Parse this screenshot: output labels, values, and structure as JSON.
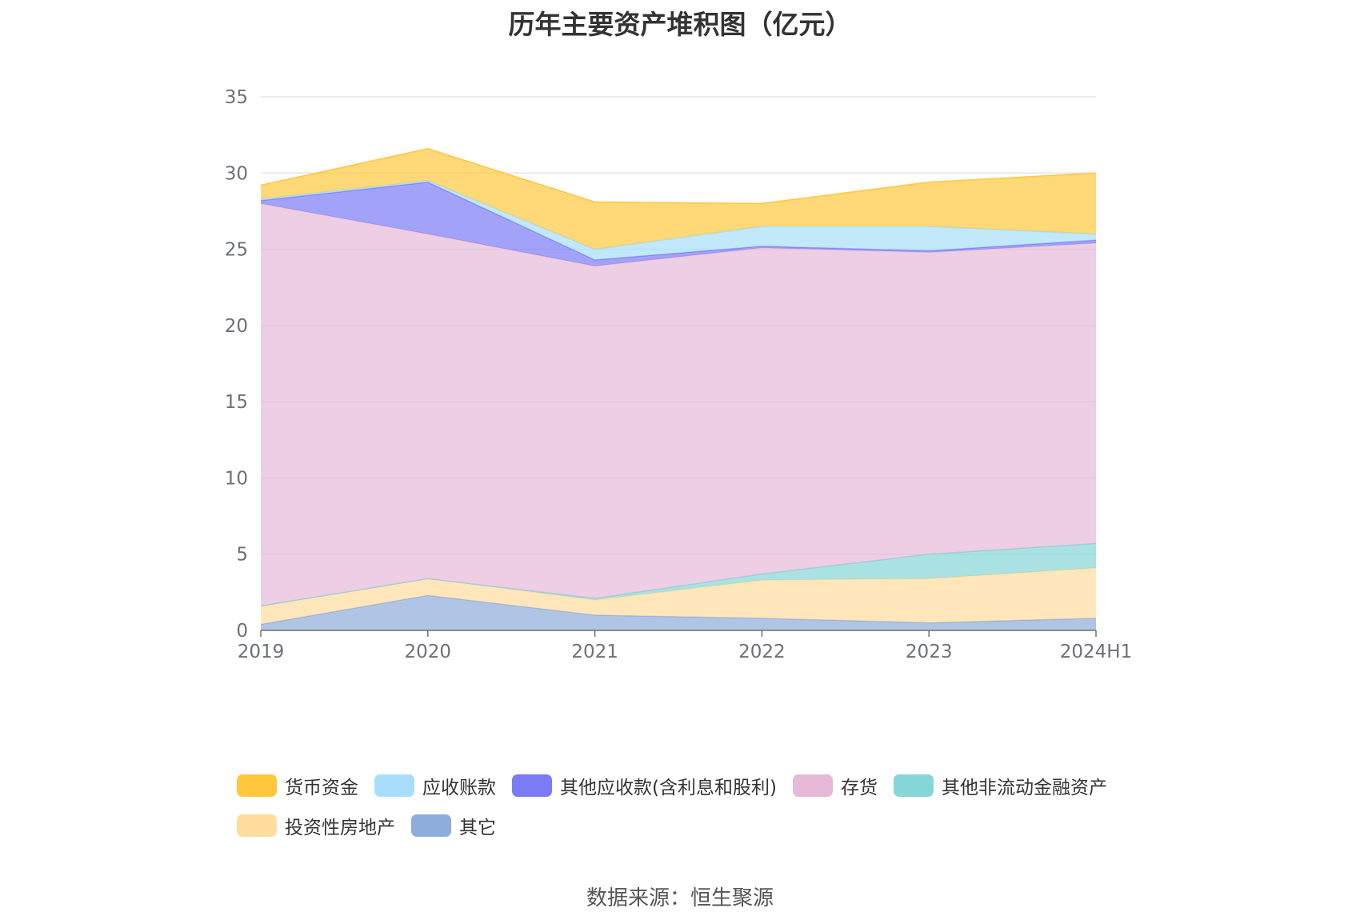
{
  "chart_data": {
    "type": "area",
    "title": "历年主要资产堆积图（亿元）",
    "x": [
      "2019",
      "2020",
      "2021",
      "2022",
      "2023",
      "2024H1"
    ],
    "ylim": [
      0,
      35
    ],
    "yticks": [
      0,
      5,
      10,
      15,
      20,
      25,
      30,
      35
    ],
    "grid": true,
    "stacked": true,
    "legend_position": "bottom",
    "series": [
      {
        "name": "其它",
        "color": "#8eacdc",
        "values": [
          0.4,
          2.3,
          1.0,
          0.8,
          0.5,
          0.8
        ]
      },
      {
        "name": "投资性房地产",
        "color": "#ffdd9e",
        "values": [
          1.2,
          1.1,
          1.0,
          2.5,
          2.9,
          3.3
        ]
      },
      {
        "name": "其他非流动金融资产",
        "color": "#86d6d7",
        "values": [
          0.0,
          0.0,
          0.1,
          0.4,
          1.6,
          1.6
        ]
      },
      {
        "name": "存货",
        "color": "#e6b9d8",
        "values": [
          26.4,
          22.6,
          21.8,
          21.4,
          19.8,
          19.7
        ]
      },
      {
        "name": "其他应收款(含利息和股利)",
        "color": "#7b7bf5",
        "values": [
          0.2,
          3.4,
          0.4,
          0.1,
          0.1,
          0.2
        ]
      },
      {
        "name": "应收账款",
        "color": "#a8defb",
        "values": [
          0.1,
          0.1,
          0.7,
          1.3,
          1.6,
          0.4
        ]
      },
      {
        "name": "货币资金",
        "color": "#ffc73d",
        "values": [
          0.9,
          2.1,
          3.1,
          1.5,
          2.9,
          4.0
        ]
      }
    ],
    "legend": [
      [
        "货币资金",
        "应收账款",
        "其他应收款(含利息和股利)",
        "存货",
        "其他非流动金融资产"
      ],
      [
        "投资性房地产",
        "其它"
      ]
    ]
  },
  "source_note": "数据来源：恒生聚源"
}
